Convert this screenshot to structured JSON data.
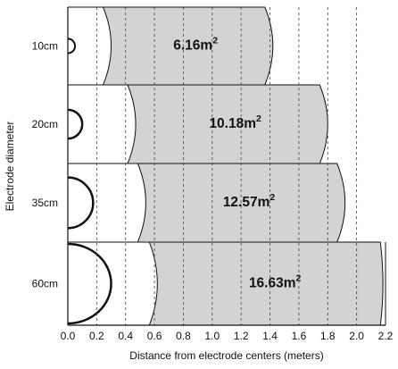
{
  "chart_data": {
    "type": "bar",
    "title": "",
    "xlabel": "Distance from electrode centers (meters)",
    "ylabel": "Electrode diameter",
    "xlim": [
      0.0,
      2.2
    ],
    "x_ticks": [
      "0.0",
      "0.2",
      "0.4",
      "0.6",
      "0.8",
      "1.0",
      "1.2",
      "1.4",
      "1.6",
      "1.8",
      "2.0",
      "2.2"
    ],
    "grid": "vertical dashed",
    "categories": [
      "10cm",
      "20cm",
      "35cm",
      "60cm"
    ],
    "electrode_diameter_m": [
      0.1,
      0.2,
      0.35,
      0.6
    ],
    "inner_boundary_m": [
      0.3,
      0.47,
      0.54,
      0.62
    ],
    "outer_boundary_m": [
      1.42,
      1.8,
      1.92,
      2.22
    ],
    "area_labels": [
      "6.16m",
      "10.18m",
      "12.57m",
      "16.63m"
    ],
    "area_values_m2": [
      6.16,
      10.18,
      12.57,
      16.63
    ],
    "area_unit_superscript": "2",
    "colors": {
      "shaded_region": "#d3d3d3",
      "outline": "#111111",
      "grid": "#444444",
      "background": "#ffffff"
    }
  }
}
